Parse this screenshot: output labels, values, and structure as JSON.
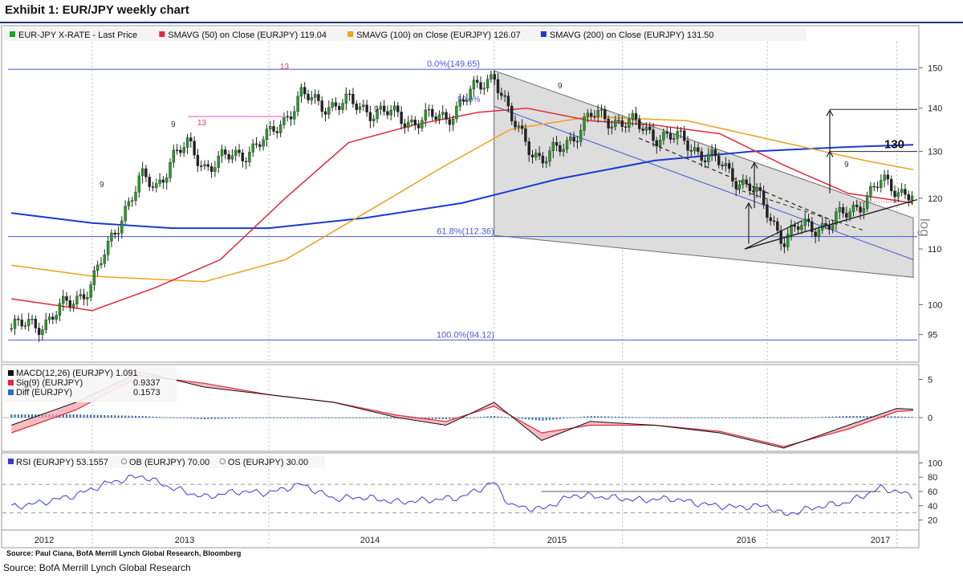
{
  "title": "Exhibit 1: EUR/JPY weekly chart",
  "footer_source": "Source: BofA Merrill Lynch Global Research",
  "chart_source": "Source: Paul Ciana, BofA Merrill Lynch Global Research, Bloomberg",
  "colors": {
    "price_up": "#22a022",
    "price_down": "#222222",
    "sma50": "#e0283a",
    "sma100": "#f0a020",
    "sma200": "#1a3ad0",
    "fib": "#4a5ad8",
    "channel": "#d8d8d8",
    "macd": "#111111",
    "signal": "#e0283a",
    "diff": "#2f6fb0",
    "rsi": "#3a3ad8"
  },
  "chart_data": [
    {
      "type": "candlestick",
      "legend": [
        {
          "label": "EUR-JPY X-RATE - Last Price",
          "color": "#22a022"
        },
        {
          "label": "SMAVG (50) on Close (EURJPY) 119.04",
          "color": "#e0283a"
        },
        {
          "label": "SMAVG (100) on Close (EURJPY) 126.07",
          "color": "#f0a020"
        },
        {
          "label": "SMAVG (200) on Close (EURJPY) 131.50",
          "color": "#1a3ad0"
        }
      ],
      "x_labels": [
        "2012",
        "2013",
        "2014",
        "2015",
        "2016",
        "2017"
      ],
      "y_ticks": [
        95,
        100,
        110,
        120,
        130,
        140,
        150
      ],
      "ylim": [
        92,
        156
      ],
      "yscale": "log",
      "fib_levels": [
        {
          "label": "0.0%(149.65)",
          "value": 149.65
        },
        {
          "label": "61.8%(112.36)",
          "value": 112.36
        },
        {
          "label": "100.0%(94.12)",
          "value": 94.12
        }
      ],
      "fib_mid_label": "50.0%",
      "target_label": "130",
      "side_label": "log",
      "annotations": [
        "13",
        "9",
        "13",
        "9",
        "9",
        "9",
        "9"
      ],
      "close_path": [
        {
          "d": "2012-06",
          "v": 96
        },
        {
          "d": "2012-08",
          "v": 97
        },
        {
          "d": "2012-10",
          "v": 101
        },
        {
          "d": "2012-11",
          "v": 104
        },
        {
          "d": "2012-12",
          "v": 110
        },
        {
          "d": "2013-01",
          "v": 118
        },
        {
          "d": "2013-02",
          "v": 124
        },
        {
          "d": "2013-03",
          "v": 122
        },
        {
          "d": "2013-04",
          "v": 129
        },
        {
          "d": "2013-05",
          "v": 131
        },
        {
          "d": "2013-06",
          "v": 127
        },
        {
          "d": "2013-08",
          "v": 129
        },
        {
          "d": "2013-10",
          "v": 133
        },
        {
          "d": "2013-12",
          "v": 143
        },
        {
          "d": "2014-01",
          "v": 141
        },
        {
          "d": "2014-03",
          "v": 141
        },
        {
          "d": "2014-05",
          "v": 139
        },
        {
          "d": "2014-07",
          "v": 137
        },
        {
          "d": "2014-09",
          "v": 138
        },
        {
          "d": "2014-11",
          "v": 145
        },
        {
          "d": "2014-12",
          "v": 149
        },
        {
          "d": "2015-01",
          "v": 137
        },
        {
          "d": "2015-03",
          "v": 128
        },
        {
          "d": "2015-04",
          "v": 130
        },
        {
          "d": "2015-06",
          "v": 138
        },
        {
          "d": "2015-08",
          "v": 137
        },
        {
          "d": "2015-10",
          "v": 134
        },
        {
          "d": "2015-12",
          "v": 132
        },
        {
          "d": "2016-02",
          "v": 127
        },
        {
          "d": "2016-04",
          "v": 122
        },
        {
          "d": "2016-06",
          "v": 112
        },
        {
          "d": "2016-07",
          "v": 114
        },
        {
          "d": "2016-09",
          "v": 115
        },
        {
          "d": "2016-10",
          "v": 117
        },
        {
          "d": "2016-12",
          "v": 123
        },
        {
          "d": "2017-01",
          "v": 122
        },
        {
          "d": "2017-02",
          "v": 121
        }
      ],
      "sma50": [
        {
          "d": "2012-06",
          "v": 101
        },
        {
          "d": "2012-11",
          "v": 99
        },
        {
          "d": "2013-03",
          "v": 103
        },
        {
          "d": "2013-07",
          "v": 108
        },
        {
          "d": "2013-11",
          "v": 120
        },
        {
          "d": "2014-03",
          "v": 132
        },
        {
          "d": "2014-07",
          "v": 136
        },
        {
          "d": "2014-11",
          "v": 139
        },
        {
          "d": "2015-02",
          "v": 140
        },
        {
          "d": "2015-06",
          "v": 137
        },
        {
          "d": "2015-10",
          "v": 136
        },
        {
          "d": "2016-02",
          "v": 134
        },
        {
          "d": "2016-06",
          "v": 127
        },
        {
          "d": "2016-10",
          "v": 121
        },
        {
          "d": "2017-02",
          "v": 119
        }
      ],
      "sma100": [
        {
          "d": "2012-06",
          "v": 107
        },
        {
          "d": "2012-11",
          "v": 105
        },
        {
          "d": "2013-06",
          "v": 104
        },
        {
          "d": "2013-11",
          "v": 108
        },
        {
          "d": "2014-04",
          "v": 117
        },
        {
          "d": "2014-09",
          "v": 127
        },
        {
          "d": "2015-01",
          "v": 135
        },
        {
          "d": "2015-06",
          "v": 138
        },
        {
          "d": "2015-12",
          "v": 137
        },
        {
          "d": "2016-06",
          "v": 132
        },
        {
          "d": "2016-11",
          "v": 128
        },
        {
          "d": "2017-02",
          "v": 126
        }
      ],
      "sma200": [
        {
          "d": "2012-06",
          "v": 117
        },
        {
          "d": "2012-11",
          "v": 115
        },
        {
          "d": "2013-04",
          "v": 114
        },
        {
          "d": "2013-10",
          "v": 114
        },
        {
          "d": "2014-04",
          "v": 116
        },
        {
          "d": "2014-10",
          "v": 119
        },
        {
          "d": "2015-04",
          "v": 124
        },
        {
          "d": "2015-10",
          "v": 128
        },
        {
          "d": "2016-04",
          "v": 130
        },
        {
          "d": "2016-10",
          "v": 131
        },
        {
          "d": "2017-02",
          "v": 131.5
        }
      ]
    },
    {
      "type": "line",
      "legend": [
        {
          "label": "MACD(12,26) (EURJPY) 1.091",
          "color": "#111111"
        },
        {
          "label": "Sig(9) (EURJPY)",
          "value": "0.9337",
          "color": "#e0283a"
        },
        {
          "label": "Diff (EURJPY)",
          "value": "0.1573",
          "color": "#2f6fb0"
        }
      ],
      "y_ticks": [
        "5",
        "0"
      ],
      "macd": [
        {
          "d": "2012-06",
          "v": -1
        },
        {
          "d": "2012-10",
          "v": 2
        },
        {
          "d": "2013-02",
          "v": 6
        },
        {
          "d": "2013-06",
          "v": 4
        },
        {
          "d": "2013-10",
          "v": 3
        },
        {
          "d": "2014-02",
          "v": 2
        },
        {
          "d": "2014-06",
          "v": 0
        },
        {
          "d": "2014-09",
          "v": -1
        },
        {
          "d": "2014-12",
          "v": 2
        },
        {
          "d": "2015-03",
          "v": -3
        },
        {
          "d": "2015-06",
          "v": -0.5
        },
        {
          "d": "2015-10",
          "v": -1
        },
        {
          "d": "2016-02",
          "v": -2
        },
        {
          "d": "2016-06",
          "v": -4
        },
        {
          "d": "2016-10",
          "v": -1
        },
        {
          "d": "2017-01",
          "v": 1.2
        },
        {
          "d": "2017-02",
          "v": 1.1
        }
      ],
      "signal": [
        {
          "d": "2012-06",
          "v": -2
        },
        {
          "d": "2012-10",
          "v": 1
        },
        {
          "d": "2013-02",
          "v": 5.5
        },
        {
          "d": "2013-06",
          "v": 4.5
        },
        {
          "d": "2013-10",
          "v": 3
        },
        {
          "d": "2014-02",
          "v": 2
        },
        {
          "d": "2014-06",
          "v": 0.3
        },
        {
          "d": "2014-09",
          "v": -0.5
        },
        {
          "d": "2014-12",
          "v": 1.5
        },
        {
          "d": "2015-03",
          "v": -2
        },
        {
          "d": "2015-06",
          "v": -1
        },
        {
          "d": "2015-10",
          "v": -1
        },
        {
          "d": "2016-02",
          "v": -1.8
        },
        {
          "d": "2016-06",
          "v": -3.8
        },
        {
          "d": "2016-10",
          "v": -1.5
        },
        {
          "d": "2017-01",
          "v": 0.8
        },
        {
          "d": "2017-02",
          "v": 0.93
        }
      ]
    },
    {
      "type": "line",
      "legend": [
        {
          "label": "RSI (EURJPY) 53.1557",
          "color": "#3a3ad8"
        },
        {
          "label": "OB (EURJPY) 70.00",
          "color": "#888888"
        },
        {
          "label": "OS (EURJPY) 30.00",
          "color": "#888888"
        }
      ],
      "y_ticks": [
        20,
        40,
        60,
        80,
        100
      ],
      "ylim": [
        15,
        105
      ],
      "ob": 70,
      "os": 30,
      "rsi": [
        {
          "d": "2012-06",
          "v": 38
        },
        {
          "d": "2012-08",
          "v": 45
        },
        {
          "d": "2012-10",
          "v": 55
        },
        {
          "d": "2012-12",
          "v": 72
        },
        {
          "d": "2013-02",
          "v": 82
        },
        {
          "d": "2013-04",
          "v": 65
        },
        {
          "d": "2013-06",
          "v": 52
        },
        {
          "d": "2013-08",
          "v": 60
        },
        {
          "d": "2013-10",
          "v": 58
        },
        {
          "d": "2013-12",
          "v": 70
        },
        {
          "d": "2014-02",
          "v": 50
        },
        {
          "d": "2014-04",
          "v": 52
        },
        {
          "d": "2014-06",
          "v": 45
        },
        {
          "d": "2014-08",
          "v": 48
        },
        {
          "d": "2014-10",
          "v": 52
        },
        {
          "d": "2014-12",
          "v": 73
        },
        {
          "d": "2015-01",
          "v": 40
        },
        {
          "d": "2015-03",
          "v": 35
        },
        {
          "d": "2015-05",
          "v": 55
        },
        {
          "d": "2015-07",
          "v": 52
        },
        {
          "d": "2015-09",
          "v": 48
        },
        {
          "d": "2015-11",
          "v": 50
        },
        {
          "d": "2016-01",
          "v": 42
        },
        {
          "d": "2016-03",
          "v": 38
        },
        {
          "d": "2016-05",
          "v": 40
        },
        {
          "d": "2016-06",
          "v": 27
        },
        {
          "d": "2016-08",
          "v": 38
        },
        {
          "d": "2016-10",
          "v": 45
        },
        {
          "d": "2016-12",
          "v": 65
        },
        {
          "d": "2017-01",
          "v": 60
        },
        {
          "d": "2017-02",
          "v": 53
        }
      ]
    }
  ]
}
